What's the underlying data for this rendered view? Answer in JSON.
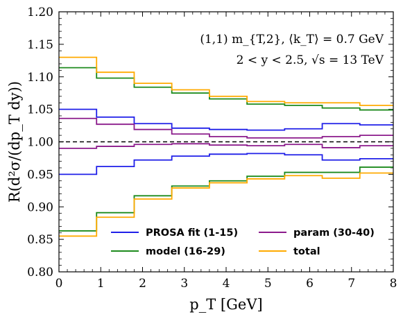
{
  "chart_data": {
    "type": "line",
    "step": true,
    "xlabel": "p_T [GeV]",
    "ylabel": "R(d²σ/(dp_T dy))",
    "xlim": [
      0,
      8
    ],
    "ylim": [
      0.8,
      1.2
    ],
    "x_ticks": [
      0,
      1,
      2,
      3,
      4,
      5,
      6,
      7,
      8
    ],
    "y_ticks": [
      "0.80",
      "0.85",
      "0.90",
      "0.95",
      "1.00",
      "1.05",
      "1.10",
      "1.15",
      "1.20"
    ],
    "annotations": [
      "(1,1) m_{T,2},  ⟨k_T⟩ = 0.7 GeV",
      "2 < y < 2.5,  √s = 13 TeV"
    ],
    "reference_line": {
      "y": 1.0,
      "style": "dashed",
      "color": "#000000"
    },
    "bin_edges": [
      0,
      0.9,
      1.8,
      2.7,
      3.6,
      4.5,
      5.4,
      6.3,
      7.2,
      8.0
    ],
    "series": [
      {
        "name": "PROSA fit (1-15)",
        "color": "#1f1fe8",
        "band": "upper",
        "values": [
          1.05,
          1.038,
          1.028,
          1.021,
          1.019,
          1.018,
          1.02,
          1.028,
          1.026
        ]
      },
      {
        "name": "PROSA fit (1-15)",
        "color": "#1f1fe8",
        "band": "lower",
        "values": [
          0.95,
          0.962,
          0.972,
          0.978,
          0.981,
          0.982,
          0.98,
          0.972,
          0.974
        ]
      },
      {
        "name": "model (16-29)",
        "color": "#1c8a1c",
        "band": "upper",
        "values": [
          1.114,
          1.098,
          1.084,
          1.075,
          1.066,
          1.058,
          1.056,
          1.052,
          1.049
        ]
      },
      {
        "name": "model (16-29)",
        "color": "#1c8a1c",
        "band": "lower",
        "values": [
          0.863,
          0.891,
          0.917,
          0.932,
          0.94,
          0.947,
          0.953,
          0.953,
          0.961
        ]
      },
      {
        "name": "param (30-40)",
        "color": "#8b1a8b",
        "band": "upper",
        "values": [
          1.036,
          1.027,
          1.019,
          1.012,
          1.008,
          1.006,
          1.006,
          1.008,
          1.01
        ]
      },
      {
        "name": "param (30-40)",
        "color": "#8b1a8b",
        "band": "lower",
        "values": [
          0.99,
          0.993,
          0.996,
          0.997,
          0.995,
          0.994,
          0.996,
          0.991,
          0.994
        ]
      },
      {
        "name": "total",
        "color": "#ffaa00",
        "band": "upper",
        "values": [
          1.13,
          1.107,
          1.09,
          1.08,
          1.07,
          1.062,
          1.06,
          1.06,
          1.056
        ]
      },
      {
        "name": "total",
        "color": "#ffaa00",
        "band": "lower",
        "values": [
          0.855,
          0.884,
          0.912,
          0.929,
          0.937,
          0.943,
          0.948,
          0.944,
          0.952
        ]
      }
    ],
    "legend": {
      "placement": "lower-center",
      "entries": [
        {
          "label": "PROSA fit (1-15)",
          "color": "#1f1fe8"
        },
        {
          "label": "param (30-40)",
          "color": "#8b1a8b"
        },
        {
          "label": "model (16-29)",
          "color": "#1c8a1c"
        },
        {
          "label": "total",
          "color": "#ffaa00"
        }
      ]
    }
  }
}
